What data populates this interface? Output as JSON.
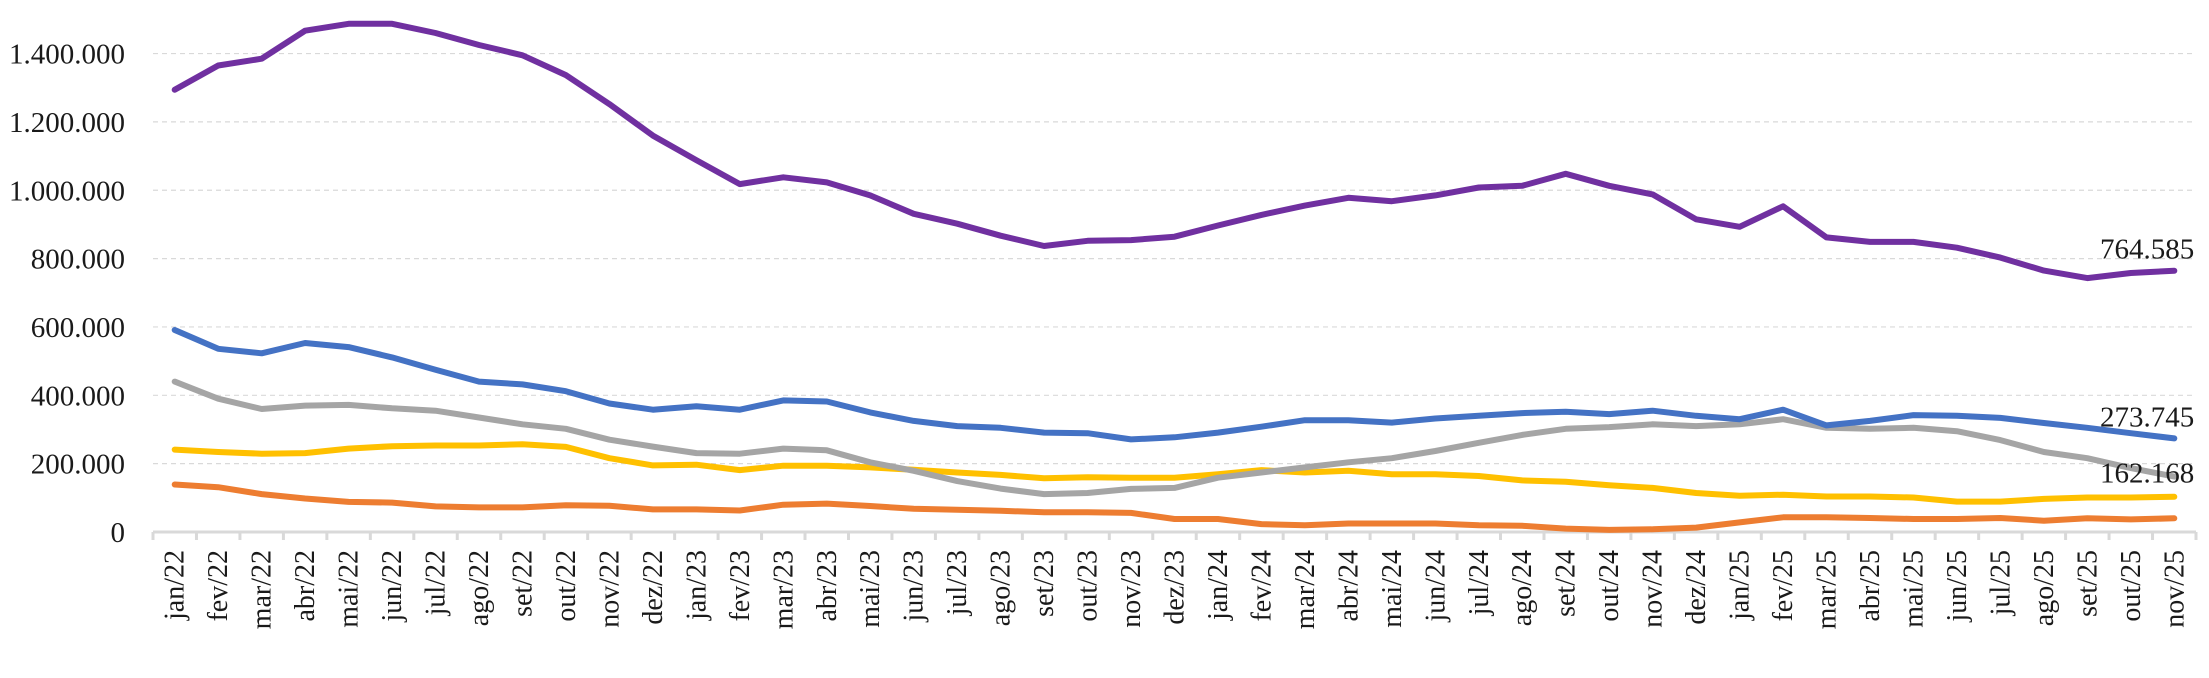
{
  "chart_data": {
    "type": "line",
    "title": "",
    "xlabel": "",
    "ylabel": "",
    "ylim": [
      0,
      1600000
    ],
    "grid": true,
    "legend": "none",
    "y_ticks": [
      {
        "value": 0,
        "label": "0"
      },
      {
        "value": 200000,
        "label": "200.000"
      },
      {
        "value": 400000,
        "label": "400.000"
      },
      {
        "value": 600000,
        "label": "600.000"
      },
      {
        "value": 800000,
        "label": "800.000"
      },
      {
        "value": 1000000,
        "label": "1.000.000"
      },
      {
        "value": 1200000,
        "label": "1.200.000"
      },
      {
        "value": 1400000,
        "label": "1.400.000"
      }
    ],
    "categories": [
      "jan/22",
      "fev/22",
      "mar/22",
      "abr/22",
      "mai/22",
      "jun/22",
      "jul/22",
      "ago/22",
      "set/22",
      "out/22",
      "nov/22",
      "dez/22",
      "jan/23",
      "fev/23",
      "mar/23",
      "abr/23",
      "mai/23",
      "jun/23",
      "jul/23",
      "ago/23",
      "set/23",
      "out/23",
      "nov/23",
      "dez/23",
      "jan/24",
      "fev/24",
      "mar/24",
      "abr/24",
      "mai/24",
      "jun/24",
      "jul/24",
      "ago/24",
      "set/24",
      "out/24",
      "nov/24",
      "dez/24",
      "jan/25",
      "fev/25",
      "mar/25",
      "abr/25",
      "mai/25",
      "jun/25",
      "jul/25",
      "ago/25",
      "set/25",
      "out/25",
      "nov/25"
    ],
    "series": [
      {
        "color": "#7030A0",
        "end_label": "764.585",
        "values": [
          1294000,
          1365000,
          1385000,
          1467000,
          1487000,
          1487000,
          1460000,
          1425000,
          1395000,
          1337000,
          1252000,
          1160000,
          1088000,
          1018000,
          1038000,
          1023000,
          985000,
          931000,
          902000,
          867000,
          837000,
          852000,
          854000,
          864000,
          897000,
          928000,
          955000,
          978000,
          968000,
          985000,
          1008000,
          1013000,
          1048000,
          1013000,
          988000,
          915000,
          893000,
          953000,
          862000,
          849000,
          849000,
          832000,
          803000,
          765000,
          743000,
          758000,
          764585
        ]
      },
      {
        "color": "#4472C4",
        "end_label": "273.745",
        "values": [
          591000,
          536000,
          523000,
          553000,
          541000,
          511000,
          475000,
          440000,
          432000,
          412000,
          376000,
          358000,
          368000,
          358000,
          385000,
          382000,
          350000,
          325000,
          310000,
          305000,
          291000,
          289000,
          271000,
          277000,
          291000,
          308000,
          327000,
          327000,
          320000,
          332000,
          340000,
          348000,
          352000,
          345000,
          355000,
          340000,
          330000,
          358000,
          312000,
          325000,
          342000,
          340000,
          334000,
          319000,
          305000,
          289000,
          273745
        ]
      },
      {
        "color": "#A5A5A5",
        "end_label": "162.168",
        "values": [
          440000,
          390000,
          360000,
          370000,
          372000,
          362000,
          355000,
          335000,
          315000,
          302000,
          270000,
          250000,
          231000,
          229000,
          244000,
          239000,
          204000,
          179000,
          149000,
          127000,
          111000,
          114000,
          126000,
          129000,
          159000,
          174000,
          189000,
          204000,
          216000,
          237000,
          261000,
          284000,
          302000,
          307000,
          315000,
          310000,
          315000,
          330000,
          305000,
          302000,
          305000,
          295000,
          269000,
          234000,
          216000,
          187000,
          162168
        ]
      },
      {
        "color": "#FFC000",
        "values": [
          241000,
          234000,
          229000,
          231000,
          244000,
          251000,
          253000,
          253000,
          257000,
          249000,
          216000,
          195000,
          197000,
          181000,
          194000,
          194000,
          189000,
          182000,
          174000,
          167000,
          157000,
          160000,
          159000,
          159000,
          169000,
          181000,
          174000,
          179000,
          169000,
          169000,
          164000,
          151000,
          147000,
          137000,
          129000,
          114000,
          106000,
          109000,
          104000,
          104000,
          101000,
          89000,
          89000,
          97000,
          101000,
          101000,
          103000
        ]
      },
      {
        "color": "#ED7D31",
        "values": [
          139000,
          131000,
          111000,
          98000,
          88000,
          86000,
          75000,
          72000,
          72000,
          78000,
          77000,
          66000,
          66000,
          63000,
          80000,
          83000,
          76000,
          68000,
          65000,
          62000,
          58000,
          58000,
          56000,
          38000,
          38000,
          23000,
          20000,
          25000,
          25000,
          25000,
          20000,
          18000,
          10000,
          6000,
          8000,
          13000,
          28000,
          43000,
          43000,
          41000,
          38000,
          38000,
          41000,
          33000,
          40000,
          37000,
          40000
        ]
      }
    ]
  }
}
